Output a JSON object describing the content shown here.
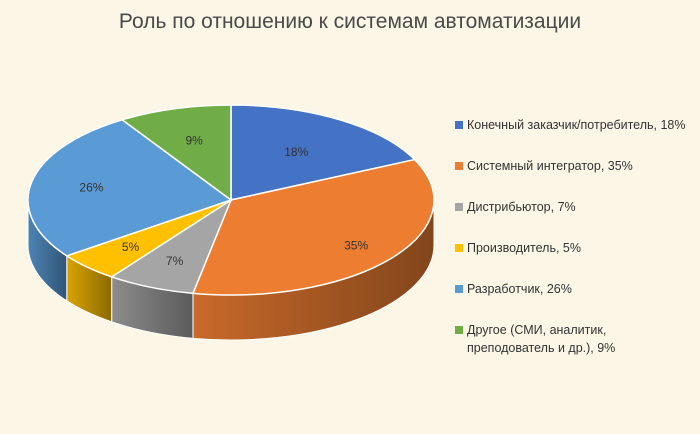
{
  "chart_data": {
    "type": "pie",
    "title": "Роль по отношению к системам автоматизации",
    "legend_position": "right",
    "slices": [
      {
        "name": "Конечный заказчик/потребитель",
        "value": 18,
        "label": "18%",
        "legend": "Конечный заказчик/потребитель, 18%",
        "color": "#4472c4"
      },
      {
        "name": "Системный интегратор",
        "value": 35,
        "label": "35%",
        "legend": "Системный интегратор, 35%",
        "color": "#ed7d31"
      },
      {
        "name": "Дистрибьютор",
        "value": 7,
        "label": "7%",
        "legend": "Дистрибьютор, 7%",
        "color": "#a5a5a5"
      },
      {
        "name": "Производитель",
        "value": 5,
        "label": "5%",
        "legend": "Производитель, 5%",
        "color": "#ffc000"
      },
      {
        "name": "Разработчик",
        "value": 26,
        "label": "26%",
        "legend": "Разработчик, 26%",
        "color": "#5b9bd5"
      },
      {
        "name": "Другое (СМИ, аналитик, преподователь и др.)",
        "value": 9,
        "label": "9%",
        "legend": "Другое (СМИ, аналитик, преподователь и др.), 9%",
        "color": "#70ad47"
      }
    ]
  }
}
